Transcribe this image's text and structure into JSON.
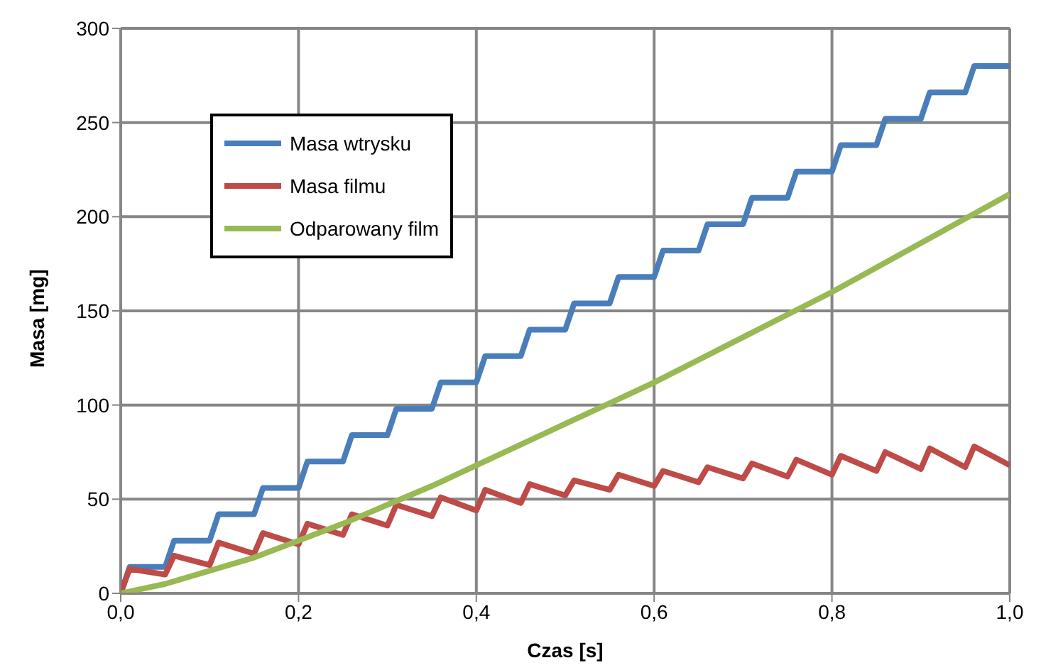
{
  "chart_data": {
    "type": "line",
    "xlabel": "Czas [s]",
    "ylabel": "Masa [mg]",
    "xlim": [
      0,
      1
    ],
    "xticks": [
      {
        "value": 0,
        "label": "0,0"
      },
      {
        "value": 0.2,
        "label": "0,2"
      },
      {
        "value": 0.4,
        "label": "0,4"
      },
      {
        "value": 0.6,
        "label": "0,6"
      },
      {
        "value": 0.8,
        "label": "0,8"
      },
      {
        "value": 1,
        "label": "1,0"
      }
    ],
    "ylim": [
      0,
      300
    ],
    "yticks": [
      0,
      50,
      100,
      150,
      200,
      250,
      300
    ],
    "grid": true,
    "legend": "top left",
    "marker": "none",
    "line_style": "solid",
    "series": [
      {
        "name": "Masa wtrysku",
        "color": "#4a7ebb",
        "x": [
          0,
          0.01,
          0.05,
          0.06,
          0.1,
          0.11,
          0.15,
          0.16,
          0.2,
          0.21,
          0.25,
          0.26,
          0.3,
          0.31,
          0.35,
          0.36,
          0.4,
          0.41,
          0.45,
          0.46,
          0.5,
          0.51,
          0.55,
          0.56,
          0.6,
          0.61,
          0.65,
          0.66,
          0.7,
          0.71,
          0.75,
          0.76,
          0.8,
          0.81,
          0.85,
          0.86,
          0.9,
          0.91,
          0.95,
          0.96,
          1.0
        ],
        "values": [
          0,
          14,
          14,
          28,
          28,
          42,
          42,
          56,
          56,
          70,
          70,
          84,
          84,
          98,
          98,
          112,
          112,
          126,
          126,
          140,
          140,
          154,
          154,
          168,
          168,
          182,
          182,
          196,
          196,
          210,
          210,
          224,
          224,
          238,
          238,
          252,
          252,
          266,
          266,
          280,
          280
        ]
      },
      {
        "name": "Masa filmu",
        "color": "#be4b48",
        "x": [
          0,
          0.01,
          0.05,
          0.06,
          0.1,
          0.11,
          0.15,
          0.16,
          0.2,
          0.21,
          0.25,
          0.26,
          0.3,
          0.31,
          0.35,
          0.36,
          0.4,
          0.41,
          0.45,
          0.46,
          0.5,
          0.51,
          0.55,
          0.56,
          0.6,
          0.61,
          0.65,
          0.66,
          0.7,
          0.71,
          0.75,
          0.76,
          0.8,
          0.81,
          0.85,
          0.86,
          0.9,
          0.91,
          0.95,
          0.96,
          1.0
        ],
        "values": [
          0,
          13,
          10,
          20,
          15,
          27,
          21,
          32,
          26,
          37,
          31,
          42,
          36,
          47,
          41,
          51,
          44,
          55,
          48,
          58,
          52,
          60,
          55,
          63,
          57,
          65,
          59,
          67,
          61,
          69,
          62,
          71,
          63,
          73,
          65,
          75,
          66,
          77,
          67,
          78,
          68
        ]
      },
      {
        "name": "Odparowany film",
        "color": "#98b954",
        "x": [
          0,
          0.05,
          0.1,
          0.15,
          0.2,
          0.25,
          0.3,
          0.35,
          0.4,
          0.45,
          0.5,
          0.55,
          0.6,
          0.65,
          0.7,
          0.75,
          0.8,
          0.85,
          0.9,
          0.95,
          1.0
        ],
        "values": [
          0,
          5,
          12,
          19,
          28,
          37,
          47,
          57,
          68,
          79,
          90,
          101,
          112,
          124,
          136,
          148,
          160,
          173,
          186,
          199,
          212
        ]
      }
    ]
  }
}
